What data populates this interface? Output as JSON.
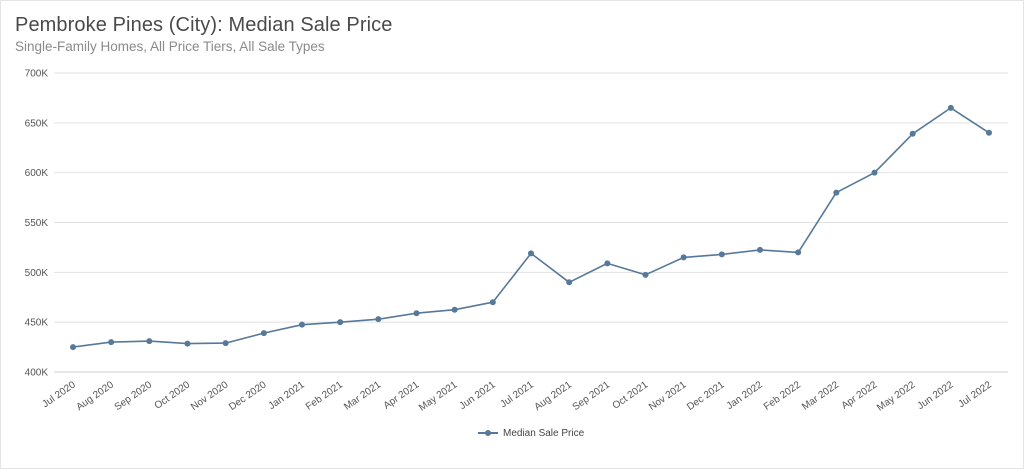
{
  "chart_data": {
    "type": "line",
    "title": "Pembroke Pines (City): Median Sale Price",
    "subtitle": "Single-Family Homes, All Price Tiers, All Sale Types",
    "categories": [
      "Jul 2020",
      "Aug 2020",
      "Sep 2020",
      "Oct 2020",
      "Nov 2020",
      "Dec 2020",
      "Jan 2021",
      "Feb 2021",
      "Mar 2021",
      "Apr 2021",
      "May 2021",
      "Jun 2021",
      "Jul 2021",
      "Aug 2021",
      "Sep 2021",
      "Oct 2021",
      "Nov 2021",
      "Dec 2021",
      "Jan 2022",
      "Feb 2022",
      "Mar 2022",
      "Apr 2022",
      "May 2022",
      "Jun 2022",
      "Jul 2022"
    ],
    "series": [
      {
        "name": "Median Sale Price",
        "values": [
          425000,
          430000,
          431000,
          428500,
          429000,
          439000,
          447500,
          450000,
          453000,
          459000,
          462500,
          470000,
          519000,
          490000,
          509000,
          497500,
          515000,
          518000,
          522500,
          520000,
          580000,
          600000,
          639000,
          665000,
          640000
        ]
      }
    ],
    "ylim": [
      400000,
      700000
    ],
    "yticks": [
      400000,
      450000,
      500000,
      550000,
      600000,
      650000,
      700000
    ],
    "ytick_labels": [
      "400K",
      "450K",
      "500K",
      "550K",
      "600K",
      "650K",
      "700K"
    ],
    "xlabel": "",
    "ylabel": "",
    "grid": true,
    "legend": "bottom-center",
    "colors": {
      "line": "#56799a",
      "grid": "#e2e2e2",
      "axis": "#d0d0d0"
    }
  }
}
